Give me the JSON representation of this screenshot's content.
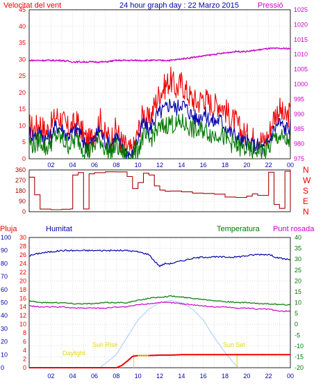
{
  "header": {
    "left_label": "Velocitat del vent",
    "title": "24 hour graph day : 22 Marzo 2015",
    "right_label": "Pressió"
  },
  "colors": {
    "red": "#ee0000",
    "blue": "#0000aa",
    "green": "#007700",
    "magenta": "#cc00cc",
    "dark_red": "#aa0000",
    "yellow": "#e8d800",
    "light_blue": "#a8c8ff",
    "grid": "#c8c8c8",
    "frame": "#222222"
  },
  "chart_data": [
    {
      "type": "line",
      "name": "wind-pressure",
      "x_ticks": [
        "02",
        "04",
        "06",
        "08",
        "10",
        "12",
        "14",
        "16",
        "18",
        "20",
        "22",
        "00"
      ],
      "y_left": {
        "label": "Velocitat del vent",
        "lim": [
          0,
          45
        ],
        "ticks": [
          0,
          5,
          10,
          15,
          20,
          25,
          30,
          35,
          40,
          45
        ]
      },
      "y_right": {
        "label": "Pressió",
        "lim": [
          975,
          1025
        ],
        "ticks": [
          975,
          980,
          985,
          990,
          995,
          1000,
          1005,
          1010,
          1015,
          1020,
          1025
        ]
      },
      "series": [
        {
          "key": "gust",
          "color": "red",
          "axis": "left",
          "x": [
            0,
            0.5,
            1,
            1.5,
            2,
            2.5,
            3,
            3.5,
            4,
            4.5,
            5,
            5.5,
            6,
            6.5,
            7,
            7.5,
            8,
            8.5,
            9,
            9.5,
            10,
            10.5,
            11,
            11.5,
            12,
            12.5,
            13,
            13.5,
            14,
            14.5,
            15,
            15.5,
            16,
            16.5,
            17,
            17.5,
            18,
            18.5,
            19,
            19.5,
            20,
            20.5,
            21,
            21.5,
            22,
            22.5,
            23,
            23.5,
            24
          ],
          "values": [
            10,
            9,
            11,
            8,
            10,
            13,
            12,
            9,
            10,
            11,
            7,
            5,
            8,
            12,
            7,
            6,
            9,
            5,
            3,
            2,
            8,
            14,
            11,
            16,
            20,
            22,
            24,
            21,
            23,
            20,
            18,
            17,
            19,
            17,
            16,
            17,
            15,
            12,
            11,
            8,
            7,
            6,
            7,
            5,
            7,
            13,
            15,
            12,
            14
          ]
        },
        {
          "key": "average",
          "color": "blue",
          "axis": "left",
          "x": [
            0,
            0.5,
            1,
            1.5,
            2,
            2.5,
            3,
            3.5,
            4,
            4.5,
            5,
            5.5,
            6,
            6.5,
            7,
            7.5,
            8,
            8.5,
            9,
            9.5,
            10,
            10.5,
            11,
            11.5,
            12,
            12.5,
            13,
            13.5,
            14,
            14.5,
            15,
            15.5,
            16,
            16.5,
            17,
            17.5,
            18,
            18.5,
            19,
            19.5,
            20,
            20.5,
            21,
            21.5,
            22,
            22.5,
            23,
            23.5,
            24
          ],
          "values": [
            8,
            7,
            8,
            6,
            7,
            10,
            9,
            7,
            8,
            9,
            5,
            4,
            6,
            9,
            5,
            4,
            7,
            3,
            2,
            1,
            6,
            11,
            8,
            12,
            14,
            15,
            17,
            15,
            17,
            15,
            13,
            12,
            14,
            12,
            11,
            12,
            10,
            8,
            7,
            5,
            5,
            4,
            4,
            3,
            5,
            9,
            11,
            9,
            10
          ]
        },
        {
          "key": "wind",
          "color": "green",
          "axis": "left",
          "x": [
            0,
            0.5,
            1,
            1.5,
            2,
            2.5,
            3,
            3.5,
            4,
            4.5,
            5,
            5.5,
            6,
            6.5,
            7,
            7.5,
            8,
            8.5,
            9,
            9.5,
            10,
            10.5,
            11,
            11.5,
            12,
            12.5,
            13,
            13.5,
            14,
            14.5,
            15,
            15.5,
            16,
            16.5,
            17,
            17.5,
            18,
            18.5,
            19,
            19.5,
            20,
            20.5,
            21,
            21.5,
            22,
            22.5,
            23,
            23.5,
            24
          ],
          "values": [
            5,
            4,
            6,
            3,
            5,
            7,
            6,
            4,
            5,
            6,
            3,
            2,
            4,
            6,
            3,
            2,
            4,
            2,
            1,
            1,
            3,
            7,
            5,
            8,
            9,
            10,
            11,
            10,
            11,
            10,
            9,
            8,
            9,
            8,
            7,
            8,
            6,
            5,
            4,
            3,
            3,
            2,
            3,
            2,
            3,
            6,
            7,
            5,
            6
          ]
        },
        {
          "key": "pressure",
          "color": "magenta",
          "axis": "right",
          "x": [
            0,
            1,
            2,
            3,
            4,
            5,
            6,
            7,
            8,
            9,
            10,
            11,
            12,
            13,
            14,
            15,
            16,
            17,
            18,
            19,
            20,
            21,
            22,
            23,
            24
          ],
          "values": [
            1008,
            1008,
            1008,
            1008,
            1007.5,
            1007.5,
            1007.5,
            1007.5,
            1008,
            1008,
            1008,
            1008,
            1008,
            1008,
            1008.5,
            1009,
            1009.5,
            1010,
            1010.5,
            1011,
            1011,
            1011.5,
            1012,
            1012,
            1012
          ]
        }
      ]
    },
    {
      "type": "line",
      "name": "wind-direction",
      "x_ticks": [
        "02",
        "04",
        "06",
        "08",
        "10",
        "12",
        "14",
        "16",
        "18",
        "20",
        "22",
        "00"
      ],
      "y_left": {
        "lim": [
          0,
          360
        ],
        "ticks": [
          0,
          90,
          180,
          270,
          360
        ]
      },
      "y_right_labels": [
        "N",
        "W",
        "S",
        "E",
        "N"
      ],
      "series": [
        {
          "key": "direction",
          "color": "dark_red",
          "axis": "left",
          "x": [
            0,
            0.5,
            1,
            2,
            3,
            3.8,
            4,
            4.5,
            5,
            5.5,
            6,
            7,
            8,
            9,
            9.5,
            10,
            10.5,
            11,
            11.5,
            12,
            12.5,
            13,
            14,
            15,
            16,
            17,
            18,
            19,
            20,
            20.5,
            21,
            22,
            22.5,
            23,
            23.5,
            24
          ],
          "values": [
            300,
            150,
            20,
            20,
            20,
            20,
            320,
            340,
            20,
            330,
            340,
            340,
            340,
            300,
            200,
            250,
            330,
            320,
            220,
            190,
            180,
            175,
            170,
            165,
            160,
            150,
            130,
            125,
            135,
            150,
            140,
            340,
            60,
            30,
            350,
            20
          ]
        }
      ]
    },
    {
      "type": "line",
      "name": "humidity-temperature-rain",
      "x_ticks": [
        "02",
        "04",
        "06",
        "08",
        "10",
        "12",
        "14",
        "16",
        "18",
        "20",
        "22",
        "00"
      ],
      "legend": [
        "Pluja",
        "Humitat",
        "Temperatura",
        "Punt rosada"
      ],
      "y_rain": {
        "label": "Pluja",
        "ticks": [
          0,
          2,
          4,
          6,
          8,
          10,
          12,
          14,
          16,
          18,
          20,
          22,
          24,
          26,
          28,
          30
        ]
      },
      "y_humidity": {
        "label": "Humitat",
        "lim": [
          0,
          100
        ],
        "ticks": [
          0,
          10,
          20,
          30,
          40,
          50,
          60,
          70,
          80,
          90,
          100
        ]
      },
      "y_temp": {
        "label": "Temperatura",
        "lim": [
          -20,
          40
        ],
        "ticks": [
          -20,
          -15,
          -10,
          -5,
          0,
          5,
          10,
          15,
          20,
          25,
          30,
          35,
          40
        ]
      },
      "annotations": [
        "Daylight",
        "Sun Rise",
        "Sun Set"
      ],
      "series": [
        {
          "key": "humidity",
          "color": "blue",
          "axis": "humidity",
          "x": [
            0,
            1,
            2,
            3,
            4,
            5,
            6,
            7,
            8,
            9,
            10,
            11,
            11.5,
            12,
            12.5,
            13,
            14,
            15,
            16,
            17,
            18,
            19,
            20,
            21,
            22,
            23,
            24
          ],
          "values": [
            86,
            88,
            89,
            90,
            90,
            90,
            90,
            90,
            90,
            90,
            89,
            87,
            82,
            78,
            80,
            80,
            82,
            84,
            85,
            85,
            85,
            85,
            86,
            87,
            87,
            84,
            83
          ]
        },
        {
          "key": "temperature",
          "color": "green",
          "axis": "temp",
          "x": [
            0,
            1,
            2,
            3,
            4,
            5,
            6,
            7,
            8,
            9,
            10,
            11,
            12,
            13,
            14,
            15,
            16,
            17,
            18,
            19,
            20,
            21,
            22,
            23,
            24
          ],
          "values": [
            11,
            10,
            10,
            10,
            9.5,
            9.5,
            9.5,
            10,
            10,
            10,
            11,
            12,
            12.5,
            13,
            12.5,
            12,
            11.5,
            11,
            10.5,
            10,
            10,
            9.5,
            9.5,
            9,
            9
          ]
        },
        {
          "key": "dew_point",
          "color": "magenta",
          "axis": "temp",
          "x": [
            0,
            1,
            2,
            3,
            4,
            5,
            6,
            7,
            8,
            9,
            10,
            11,
            12,
            13,
            14,
            15,
            16,
            17,
            18,
            19,
            20,
            21,
            22,
            23,
            24
          ],
          "values": [
            8.5,
            8,
            8,
            8,
            7.5,
            7.5,
            7.5,
            7.5,
            8,
            8,
            9,
            9.5,
            10,
            10,
            9.5,
            9,
            8.5,
            8,
            8,
            7.5,
            7.5,
            7,
            7,
            6,
            6
          ]
        },
        {
          "key": "rain",
          "color": "red",
          "axis": "rain",
          "x": [
            0,
            8,
            8.5,
            9,
            9.5,
            10,
            10.5,
            11,
            12,
            13,
            14,
            15,
            16,
            17,
            18,
            19,
            20,
            21,
            22,
            23,
            24
          ],
          "values": [
            0,
            0,
            0.5,
            1.5,
            2.6,
            2.8,
            2.8,
            2.8,
            2.9,
            2.9,
            3,
            3,
            3,
            3,
            3,
            3,
            3,
            3,
            3,
            3,
            3
          ]
        },
        {
          "key": "solar",
          "color": "light_blue",
          "axis": "temp",
          "x": [
            6.5,
            8,
            9,
            10,
            11,
            12,
            13,
            14,
            15,
            16,
            17,
            18,
            19,
            19.3
          ],
          "values": [
            -20,
            -14,
            -6,
            2,
            7,
            10,
            11,
            10,
            7,
            2,
            -6,
            -13,
            -19,
            -20
          ]
        }
      ]
    }
  ]
}
